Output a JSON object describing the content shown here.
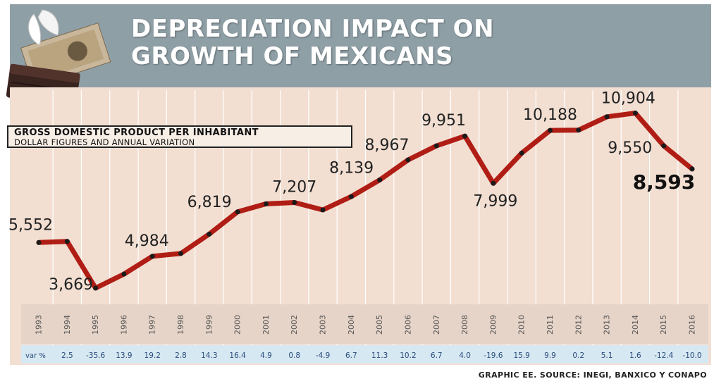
{
  "header": {
    "title_line1": "DEPRECIATION IMPACT ON",
    "title_line2": "GROWTH OF MEXICANS"
  },
  "legend": {
    "title": "GROSS DOMESTIC PRODUCT PER INHABITANT",
    "subtitle": "DOLLAR FIGURES AND ANNUAL VARIATION"
  },
  "variation_label": "var %",
  "source": "GRAPHIC EE. SOURCE: INEGI, BANXICO Y CONAPO",
  "colors": {
    "banner": "#8f9fa6",
    "panel": "#f2dfd2",
    "line": "#b01d14",
    "variation_row": "#d6e8f2"
  },
  "chart_data": {
    "type": "line",
    "title": "GROSS DOMESTIC PRODUCT PER INHABITANT",
    "subtitle": "DOLLAR FIGURES AND ANNUAL VARIATION",
    "categories": [
      "1993",
      "1994",
      "1995",
      "1996",
      "1997",
      "1998",
      "1999",
      "2000",
      "2001",
      "2002",
      "2003",
      "2004",
      "2005",
      "2006",
      "2007",
      "2008",
      "2009",
      "2010",
      "2011",
      "2012",
      "2013",
      "2014",
      "2015",
      "2016"
    ],
    "values": [
      5552,
      5600,
      3669,
      4250,
      4984,
      5100,
      5900,
      6819,
      7150,
      7207,
      6900,
      7450,
      8139,
      8967,
      9550,
      9951,
      7999,
      9250,
      10188,
      10200,
      10750,
      10904,
      9550,
      8593
    ],
    "labels": [
      {
        "index": 0,
        "text": "5,552"
      },
      {
        "index": 2,
        "text": "3,669"
      },
      {
        "index": 4,
        "text": "4,984"
      },
      {
        "index": 7,
        "text": "6,819"
      },
      {
        "index": 9,
        "text": "7,207"
      },
      {
        "index": 12,
        "text": "8,139"
      },
      {
        "index": 13,
        "text": "8,967"
      },
      {
        "index": 15,
        "text": "9,951"
      },
      {
        "index": 16,
        "text": "7,999"
      },
      {
        "index": 18,
        "text": "10,188"
      },
      {
        "index": 21,
        "text": "10,904"
      },
      {
        "index": 22,
        "text": "9,550"
      },
      {
        "index": 23,
        "text": "8,593"
      }
    ],
    "variation": [
      "",
      "2.5",
      "-35.6",
      "13.9",
      "19.2",
      "2.8",
      "14.3",
      "16.4",
      "4.9",
      "0.8",
      "-4.9",
      "6.7",
      "11.3",
      "10.2",
      "6.7",
      "4.0",
      "-19.6",
      "15.9",
      "9.9",
      "0.2",
      "5.1",
      "1.6",
      "-12.4",
      "-10.0"
    ],
    "ylim": [
      3000,
      11500
    ],
    "grid": "vertical"
  }
}
